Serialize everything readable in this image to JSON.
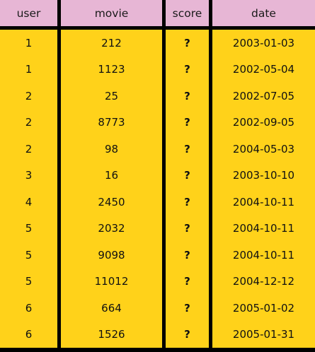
{
  "table": {
    "columns": [
      "user",
      "movie",
      "score",
      "date"
    ],
    "rows": [
      [
        "1",
        "212",
        "?",
        "2003-01-03"
      ],
      [
        "1",
        "1123",
        "?",
        "2002-05-04"
      ],
      [
        "2",
        "25",
        "?",
        "2002-07-05"
      ],
      [
        "2",
        "8773",
        "?",
        "2002-09-05"
      ],
      [
        "2",
        "98",
        "?",
        "2004-05-03"
      ],
      [
        "3",
        "16",
        "?",
        "2003-10-10"
      ],
      [
        "4",
        "2450",
        "?",
        "2004-10-11"
      ],
      [
        "5",
        "2032",
        "?",
        "2004-10-11"
      ],
      [
        "5",
        "9098",
        "?",
        "2004-10-11"
      ],
      [
        "5",
        "11012",
        "?",
        "2004-12-12"
      ],
      [
        "6",
        "664",
        "?",
        "2005-01-02"
      ],
      [
        "6",
        "1526",
        "?",
        "2005-01-31"
      ]
    ]
  },
  "colors": {
    "header_bg": "#e7b6d5",
    "row_bg": "#ffd21a",
    "gap": "#000000"
  }
}
